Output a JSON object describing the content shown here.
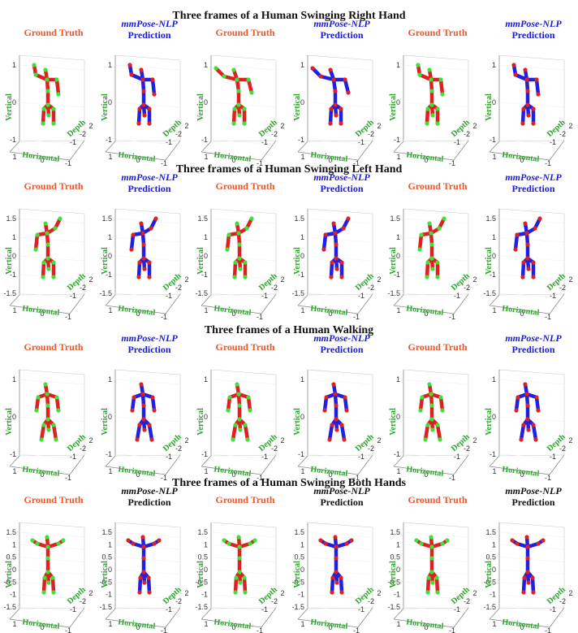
{
  "labels": {
    "gt": "Ground Truth",
    "pred_model": "mmPose-NLP",
    "pred_word": "Prediction",
    "vertical": "Vertical",
    "horizontal": "Horizontal",
    "depth": "Depth"
  },
  "colors": {
    "gt_line": "#e02020",
    "gt_joint": "#39e339",
    "pred_line": "#2020e0",
    "pred_joint": "#e02020",
    "axis_label": "#2aa32a",
    "gt_title": "#e8582c",
    "pred_title": "#1a1adb"
  },
  "chart_data": [
    {
      "type": "scatter",
      "title": "Three frames of a Human Swinging Right Hand",
      "panels": [
        "Ground Truth",
        "mmPose-NLP Prediction",
        "Ground Truth",
        "mmPose-NLP Prediction",
        "Ground Truth",
        "mmPose-NLP Prediction"
      ],
      "xlabel": "Horizontal",
      "ylabel": "Vertical",
      "zlabel": "Depth",
      "vertical_ticks": [
        "1",
        "0",
        "-1"
      ],
      "horizontal_ticks": [
        "1",
        "0",
        "-1"
      ],
      "depth_ticks": [
        "-1",
        "-2",
        "2"
      ]
    },
    {
      "type": "scatter",
      "title": "Three frames of a Human Swinging Left Hand",
      "panels": [
        "Ground Truth",
        "mmPose-NLP Prediction",
        "Ground Truth",
        "mmPose-NLP Prediction",
        "Ground Truth",
        "mmPose-NLP Prediction"
      ],
      "xlabel": "Horizontal",
      "ylabel": "Vertical",
      "zlabel": "Depth",
      "vertical_ticks": [
        "1.5",
        "1",
        "0",
        "-1",
        "-1.5"
      ],
      "horizontal_ticks": [
        "1",
        "0",
        "-1"
      ],
      "depth_ticks": [
        "-1",
        "-2",
        "2"
      ]
    },
    {
      "type": "scatter",
      "title": "Three frames of a Human Walking",
      "panels": [
        "Ground Truth",
        "mmPose-NLP Prediction",
        "Ground Truth",
        "mmPose-NLP Prediction",
        "Ground Truth",
        "mmPose-NLP Prediction"
      ],
      "xlabel": "Horizontal",
      "ylabel": "Vertical",
      "zlabel": "Depth",
      "vertical_ticks": [
        "1",
        "0",
        "-1"
      ],
      "horizontal_ticks": [
        "1",
        "0",
        "-1"
      ],
      "depth_ticks": [
        "-1",
        "-2",
        "2"
      ]
    },
    {
      "type": "scatter",
      "title": "Three frames of a Human Swinging Both Hands",
      "panels": [
        "Ground Truth",
        "mmPose-NLP Prediction",
        "Ground Truth",
        "mmPose-NLP Prediction",
        "Ground Truth",
        "mmPose-NLP Prediction"
      ],
      "xlabel": "Horizontal",
      "ylabel": "Vertical",
      "zlabel": "Depth",
      "vertical_ticks": [
        "1.5",
        "1",
        "0.5",
        "0",
        "-0.5",
        "-1",
        "-1.5"
      ],
      "horizontal_ticks": [
        "1",
        "0",
        "-1"
      ],
      "depth_ticks": [
        "-1",
        "-2",
        "2"
      ]
    }
  ]
}
